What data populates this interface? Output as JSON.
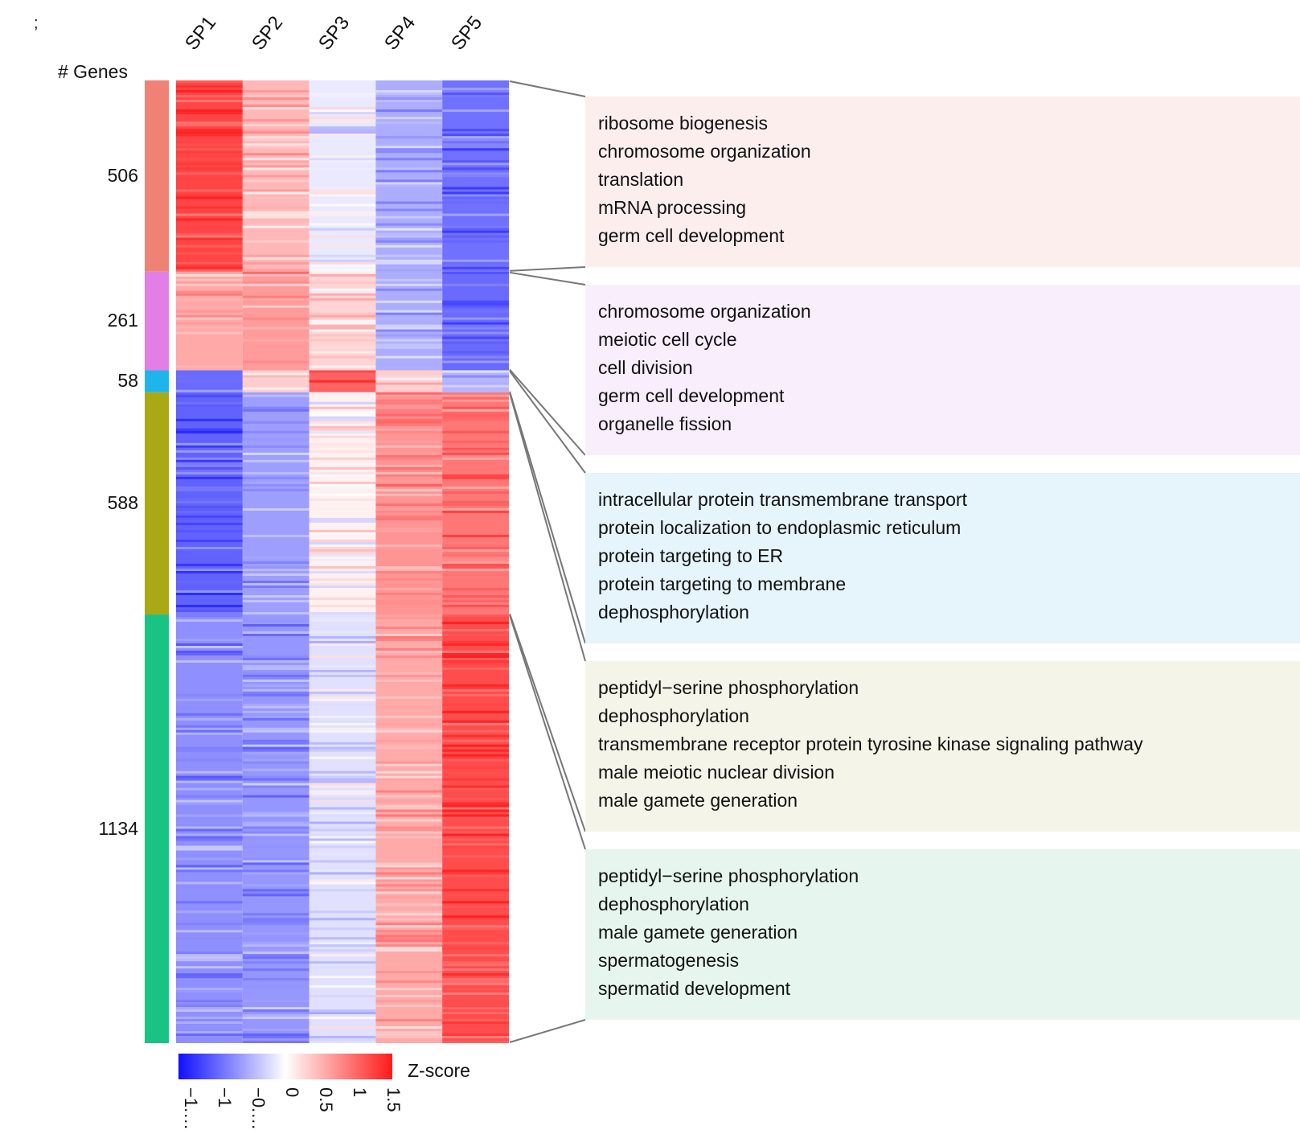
{
  "corner_mark": ";",
  "chart_data": {
    "type": "heatmap",
    "row_header": "# Genes",
    "columns": [
      "SP1",
      "SP2",
      "SP3",
      "SP4",
      "SP5"
    ],
    "clusters": [
      {
        "count": 506,
        "color": "#f08275",
        "panel_color": "#fdeeee",
        "mean_z": [
          1.3,
          0.5,
          -0.15,
          -0.55,
          -0.95
        ],
        "terms": [
          "ribosome biogenesis",
          "chromosome organization",
          "translation",
          "mRNA processing",
          "germ cell development"
        ]
      },
      {
        "count": 261,
        "color": "#e27ee6",
        "panel_color": "#f8eefc",
        "mean_z": [
          0.6,
          0.7,
          0.3,
          -0.55,
          -1.0
        ],
        "terms": [
          "chromosome organization",
          "meiotic cell cycle",
          "cell division",
          "germ cell development",
          "organelle fission"
        ]
      },
      {
        "count": 58,
        "color": "#1fb5ea",
        "panel_color": "#e6f4fb",
        "mean_z": [
          -1.0,
          0.35,
          1.1,
          0.35,
          -0.5
        ],
        "terms": [
          "intracellular protein transmembrane transport",
          "protein localization to endoplasmic reticulum",
          "protein targeting to ER",
          "protein targeting to membrane",
          "dephosphorylation"
        ]
      },
      {
        "count": 588,
        "color": "#a9a815",
        "panel_color": "#f4f4e8",
        "mean_z": [
          -1.05,
          -0.65,
          0.1,
          0.75,
          0.95
        ],
        "terms": [
          "peptidyl−serine phosphorylation",
          "dephosphorylation",
          "transmembrane receptor protein tyrosine kinase signaling pathway",
          "male meiotic nuclear division",
          "male gamete generation"
        ]
      },
      {
        "count": 1134,
        "color": "#18c384",
        "panel_color": "#e6f6ef",
        "mean_z": [
          -0.75,
          -0.7,
          -0.2,
          0.6,
          1.25
        ],
        "terms": [
          "peptidyl−serine phosphorylation",
          "dephosphorylation",
          "male gamete generation",
          "spermatogenesis",
          "spermatid development"
        ]
      }
    ],
    "colorbar": {
      "title": "Z-score",
      "ticks": [
        "−1.…",
        "−1",
        "−0.…",
        "0",
        "0.5",
        "1",
        "1.5"
      ],
      "range": [
        -1.6,
        1.6
      ],
      "low_color": "#1010ff",
      "mid_color": "#ffffff",
      "high_color": "#ff1a1a"
    }
  }
}
